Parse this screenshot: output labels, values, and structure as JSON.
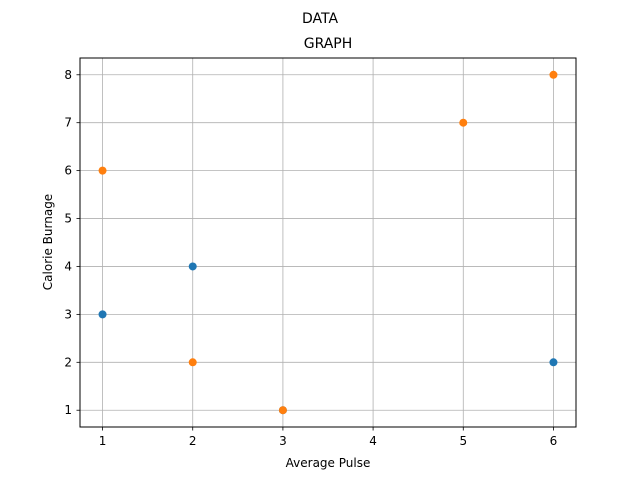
{
  "chart_data": {
    "type": "scatter",
    "suptitle": "DATA",
    "title": "GRAPH",
    "xlabel": "Average Pulse",
    "ylabel": "Calorie Burnage",
    "xlim": [
      0.75,
      6.25
    ],
    "ylim": [
      0.65,
      8.35
    ],
    "xticks": [
      1,
      2,
      3,
      4,
      5,
      6
    ],
    "yticks": [
      1,
      2,
      3,
      4,
      5,
      6,
      7,
      8
    ],
    "grid": true,
    "series": [
      {
        "color": "#1f77b4",
        "points": [
          {
            "x": 1,
            "y": 3
          },
          {
            "x": 2,
            "y": 4
          },
          {
            "x": 3,
            "y": 1
          },
          {
            "x": 6,
            "y": 2
          }
        ]
      },
      {
        "color": "#ff7f0e",
        "points": [
          {
            "x": 1,
            "y": 6
          },
          {
            "x": 2,
            "y": 2
          },
          {
            "x": 3,
            "y": 1
          },
          {
            "x": 5,
            "y": 7
          },
          {
            "x": 6,
            "y": 8
          }
        ]
      }
    ]
  }
}
